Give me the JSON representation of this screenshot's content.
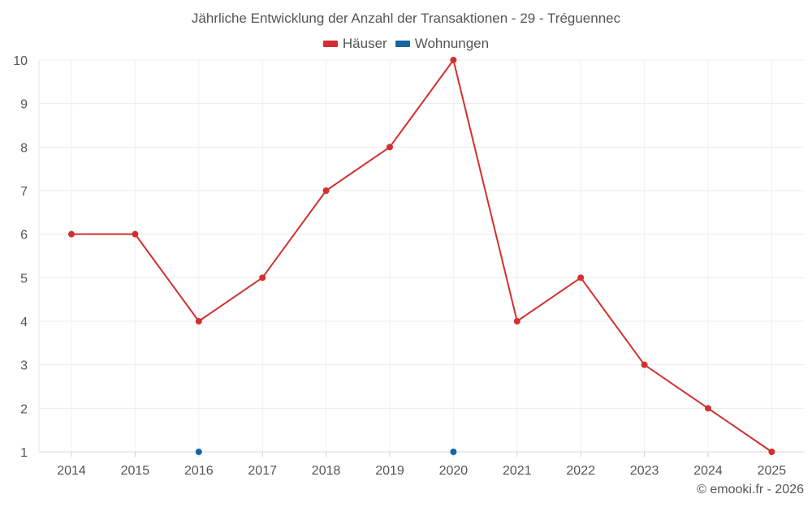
{
  "chart_data": {
    "type": "line",
    "title": "Jährliche Entwicklung der Anzahl der Transaktionen - 29 - Tréguennec",
    "categories": [
      "2014",
      "2015",
      "2016",
      "2017",
      "2018",
      "2019",
      "2020",
      "2021",
      "2022",
      "2023",
      "2024",
      "2025"
    ],
    "series": [
      {
        "name": "Häuser",
        "color": "#d32f2f",
        "values": [
          6,
          6,
          4,
          5,
          7,
          8,
          10,
          4,
          5,
          3,
          2,
          1
        ]
      },
      {
        "name": "Wohnungen",
        "color": "#1565a0",
        "values": [
          null,
          null,
          1,
          null,
          null,
          null,
          1,
          null,
          null,
          null,
          null,
          null
        ]
      }
    ],
    "y_ticks": [
      1,
      2,
      3,
      4,
      5,
      6,
      7,
      8,
      9,
      10
    ],
    "ylim": [
      1,
      10
    ],
    "grid": true,
    "legend_position": "top-center"
  },
  "credit": "© emooki.fr - 2026"
}
